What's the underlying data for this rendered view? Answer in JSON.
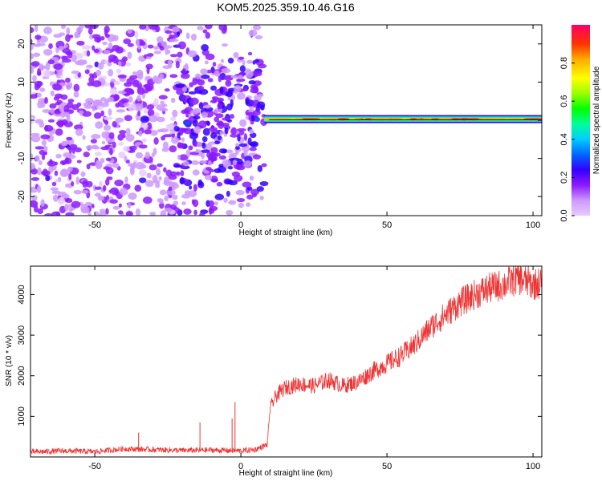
{
  "figure": {
    "title": "KOM5.2025.359.10.46.G16"
  },
  "chart_data": [
    {
      "type": "heatmap",
      "xlabel": "Height of straight line (km)",
      "ylabel": "Frequency (Hz)",
      "xlim": [
        -72,
        103
      ],
      "ylim": [
        -25,
        25
      ],
      "xticks": [
        -50,
        0,
        50,
        100
      ],
      "yticks": [
        -20,
        -10,
        0,
        10,
        20
      ],
      "colorbar": {
        "label": "Normalized spectral amplitude",
        "range": [
          0,
          1
        ],
        "ticks": [
          "0.0",
          "0.2",
          "0.4",
          "0.6",
          "0.8"
        ],
        "colors": [
          "#e6ccff",
          "#cc99ff",
          "#8c1aff",
          "#3300ff",
          "#0066ff",
          "#00ccff",
          "#00ff99",
          "#00ff00",
          "#99ff00",
          "#ffff00",
          "#ffaa00",
          "#ff3300",
          "#ff0066"
        ]
      },
      "regions": [
        {
          "x_range": [
            -72,
            -20
          ],
          "description_level": 0.15
        },
        {
          "x_range": [
            -20,
            8
          ],
          "description_level": 0.3
        },
        {
          "x_range": [
            8,
            103
          ],
          "line_frequency": 0.3,
          "line_amplitude": 0.85
        }
      ]
    },
    {
      "type": "line",
      "xlabel": "Height of straight line (km)",
      "ylabel": "SNR (10 * v/v)",
      "xlim": [
        -72,
        103
      ],
      "ylim": [
        0,
        4700
      ],
      "xticks": [
        -50,
        0,
        50,
        100
      ],
      "yticks": [
        1000,
        2000,
        3000,
        4000
      ],
      "series": [
        {
          "color": "#ee3333",
          "x": [
            -72,
            -60,
            -50,
            -40,
            -30,
            -20,
            -10,
            0,
            5,
            9,
            10,
            12,
            15,
            20,
            25,
            30,
            35,
            40,
            45,
            50,
            55,
            60,
            65,
            70,
            75,
            80,
            85,
            90,
            95,
            100,
            103
          ],
          "y": [
            120,
            150,
            130,
            200,
            180,
            160,
            170,
            150,
            180,
            300,
            1200,
            1500,
            1700,
            1800,
            1750,
            1900,
            1750,
            1850,
            2100,
            2300,
            2500,
            2800,
            3200,
            3500,
            3800,
            4000,
            4150,
            4250,
            4400,
            4250,
            4300
          ]
        }
      ],
      "spikes": [
        {
          "x": -35,
          "y": 600
        },
        {
          "x": -14,
          "y": 850
        },
        {
          "x": -2,
          "y": 1350
        },
        {
          "x": -3,
          "y": 950
        }
      ]
    }
  ]
}
